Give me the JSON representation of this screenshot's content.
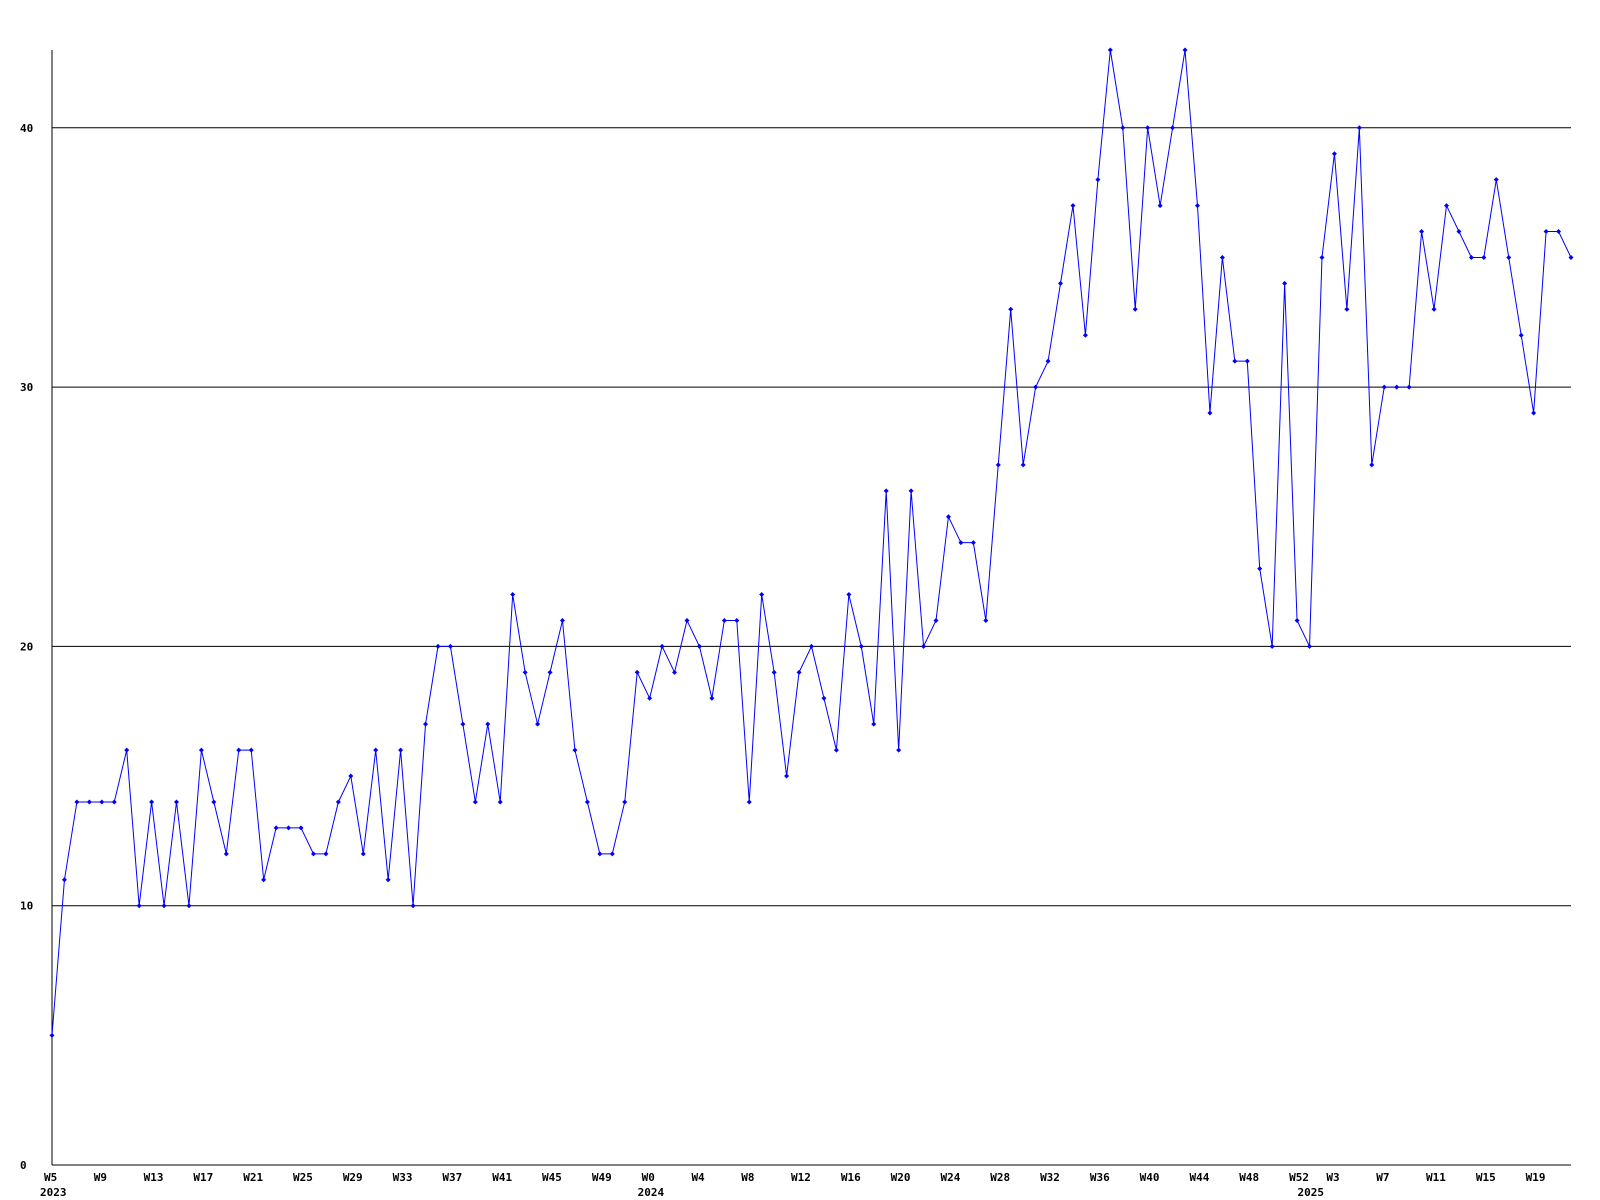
{
  "chart_data": {
    "type": "line",
    "categories": [
      "W5",
      null,
      null,
      null,
      "W9",
      null,
      null,
      null,
      "W13",
      null,
      null,
      null,
      "W17",
      null,
      null,
      null,
      "W21",
      null,
      null,
      null,
      "W25",
      null,
      null,
      null,
      "W29",
      null,
      null,
      null,
      "W33",
      null,
      null,
      null,
      "W37",
      null,
      null,
      null,
      "W41",
      null,
      null,
      null,
      "W45",
      null,
      null,
      null,
      "W49",
      null,
      null,
      null,
      "W0",
      null,
      null,
      null,
      "W4",
      null,
      null,
      null,
      "W8",
      null,
      null,
      null,
      "W12",
      null,
      null,
      null,
      "W16",
      null,
      null,
      null,
      "W20",
      null,
      null,
      null,
      "W24",
      null,
      null,
      null,
      "W28",
      null,
      null,
      null,
      "W32",
      null,
      null,
      null,
      "W36",
      null,
      null,
      null,
      "W40",
      null,
      null,
      null,
      "W44",
      null,
      null,
      null,
      "W48",
      null,
      null,
      null,
      "W52",
      null,
      null,
      "W3",
      null,
      null,
      null,
      "W7",
      null,
      null,
      null,
      "W11",
      null,
      null,
      null,
      "W15",
      null,
      null,
      null,
      "W19",
      null,
      null,
      null
    ],
    "year_labels": [
      "2023",
      null,
      null,
      null,
      null,
      null,
      null,
      null,
      null,
      null,
      null,
      null,
      null,
      null,
      null,
      null,
      null,
      null,
      null,
      null,
      null,
      null,
      null,
      null,
      null,
      null,
      null,
      null,
      null,
      null,
      null,
      null,
      null,
      null,
      null,
      null,
      null,
      null,
      null,
      null,
      null,
      null,
      null,
      null,
      null,
      null,
      null,
      null,
      "2024",
      null,
      null,
      null,
      null,
      null,
      null,
      null,
      null,
      null,
      null,
      null,
      null,
      null,
      null,
      null,
      null,
      null,
      null,
      null,
      null,
      null,
      null,
      null,
      null,
      null,
      null,
      null,
      null,
      null,
      null,
      null,
      null,
      null,
      null,
      null,
      null,
      null,
      null,
      null,
      null,
      null,
      null,
      null,
      null,
      null,
      null,
      null,
      null,
      null,
      null,
      null,
      null,
      "2025",
      null,
      null,
      null,
      null,
      null,
      null,
      null,
      null,
      null,
      null,
      null,
      null,
      null,
      null,
      null,
      null,
      null,
      null,
      null,
      null
    ],
    "series": [
      {
        "color": "#0000ff",
        "values": [
          5,
          11,
          14,
          14,
          14,
          14,
          16,
          10,
          14,
          10,
          14,
          10,
          16,
          14,
          12,
          16,
          16,
          11,
          13,
          13,
          13,
          12,
          12,
          14,
          15,
          12,
          16,
          11,
          16,
          10,
          17,
          20,
          20,
          17,
          14,
          17,
          14,
          22,
          19,
          17,
          19,
          21,
          16,
          14,
          12,
          12,
          14,
          19,
          18,
          20,
          19,
          21,
          20,
          18,
          21,
          21,
          14,
          22,
          19,
          15,
          19,
          20,
          18,
          16,
          22,
          20,
          17,
          26,
          16,
          26,
          20,
          21,
          25,
          24,
          24,
          21,
          27,
          33,
          27,
          30,
          31,
          34,
          37,
          32,
          38,
          43,
          40,
          33,
          40,
          37,
          40,
          43,
          37,
          29,
          35,
          31,
          31,
          23,
          20,
          34,
          21,
          20,
          35,
          39,
          33,
          40,
          27,
          30,
          30,
          30,
          36,
          33,
          37,
          36,
          35,
          35,
          38,
          35,
          32,
          29,
          36,
          36,
          35
        ]
      }
    ],
    "ylim": [
      0,
      43
    ],
    "yticks": [
      0,
      10,
      20,
      30,
      40
    ],
    "grid": true
  }
}
